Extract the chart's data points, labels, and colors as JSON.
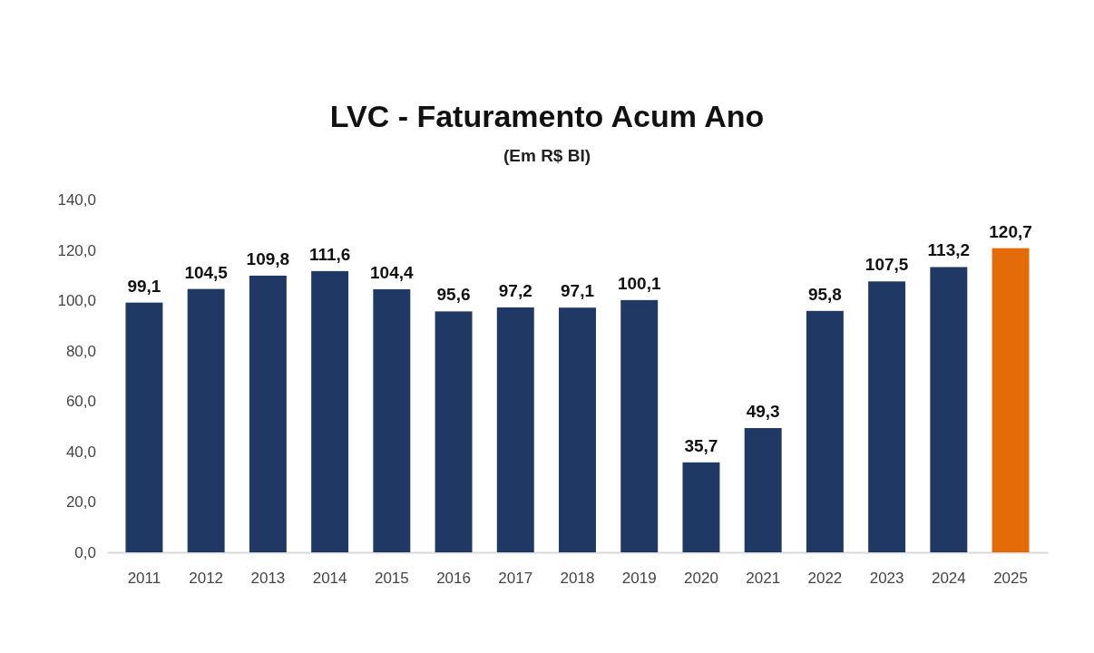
{
  "chart_data": {
    "type": "bar",
    "title": "LVC - Faturamento Acum Ano",
    "subtitle": "(Em R$ BI)",
    "categories": [
      "2011",
      "2012",
      "2013",
      "2014",
      "2015",
      "2016",
      "2017",
      "2018",
      "2019",
      "2020",
      "2021",
      "2022",
      "2023",
      "2024",
      "2025"
    ],
    "values": [
      99.1,
      104.5,
      109.8,
      111.6,
      104.4,
      95.6,
      97.2,
      97.1,
      100.1,
      35.7,
      49.3,
      95.8,
      107.5,
      113.2,
      120.7
    ],
    "colors": [
      "#203864",
      "#203864",
      "#203864",
      "#203864",
      "#203864",
      "#203864",
      "#203864",
      "#203864",
      "#203864",
      "#203864",
      "#203864",
      "#203864",
      "#203864",
      "#203864",
      "#e36c09"
    ],
    "value_labels": [
      "99,1",
      "104,5",
      "109,8",
      "111,6",
      "104,4",
      "95,6",
      "97,2",
      "97,1",
      "100,1",
      "35,7",
      "49,3",
      "95,8",
      "107,5",
      "113,2",
      "120,7"
    ],
    "ylim": [
      0,
      140
    ],
    "yticks": [
      {
        "value": 0,
        "label": "0,0"
      },
      {
        "value": 20,
        "label": "20,0"
      },
      {
        "value": 40,
        "label": "40,0"
      },
      {
        "value": 60,
        "label": "60,0"
      },
      {
        "value": 80,
        "label": "80,0"
      },
      {
        "value": 100,
        "label": "100,0"
      },
      {
        "value": 120,
        "label": "120,0"
      },
      {
        "value": 140,
        "label": "140,0"
      }
    ],
    "grid": false
  }
}
